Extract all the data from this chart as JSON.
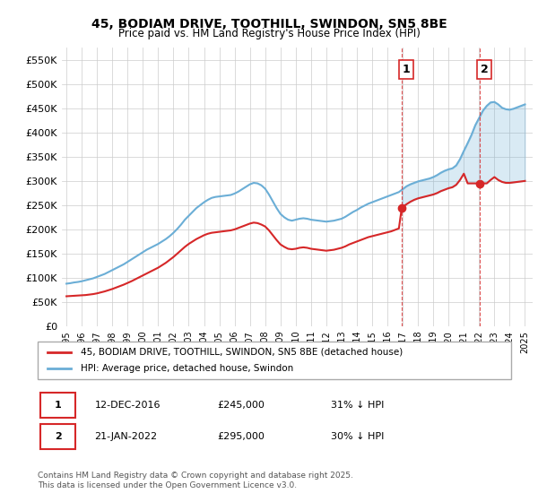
{
  "title": "45, BODIAM DRIVE, TOOTHILL, SWINDON, SN5 8BE",
  "subtitle": "Price paid vs. HM Land Registry's House Price Index (HPI)",
  "ylabel_ticks": [
    "£0",
    "£50K",
    "£100K",
    "£150K",
    "£200K",
    "£250K",
    "£300K",
    "£350K",
    "£400K",
    "£450K",
    "£500K",
    "£550K"
  ],
  "ytick_values": [
    0,
    50000,
    100000,
    150000,
    200000,
    250000,
    300000,
    350000,
    400000,
    450000,
    500000,
    550000
  ],
  "ylim": [
    0,
    575000
  ],
  "xlim_start": 1995.0,
  "xlim_end": 2025.5,
  "sale1_date": 2016.94,
  "sale1_price": 245000,
  "sale1_label": "1",
  "sale2_date": 2022.05,
  "sale2_price": 295000,
  "sale2_label": "2",
  "hpi_color": "#6baed6",
  "property_color": "#d62728",
  "vline_color": "#d62728",
  "grid_color": "#cccccc",
  "legend_property": "45, BODIAM DRIVE, TOOTHILL, SWINDON, SN5 8BE (detached house)",
  "legend_hpi": "HPI: Average price, detached house, Swindon",
  "table_row1": [
    "1",
    "12-DEC-2016",
    "£245,000",
    "31% ↓ HPI"
  ],
  "table_row2": [
    "2",
    "21-JAN-2022",
    "£295,000",
    "30% ↓ HPI"
  ],
  "footer": "Contains HM Land Registry data © Crown copyright and database right 2025.\nThis data is licensed under the Open Government Licence v3.0.",
  "hpi_x": [
    1995.0,
    1995.25,
    1995.5,
    1995.75,
    1996.0,
    1996.25,
    1996.5,
    1996.75,
    1997.0,
    1997.25,
    1997.5,
    1997.75,
    1998.0,
    1998.25,
    1998.5,
    1998.75,
    1999.0,
    1999.25,
    1999.5,
    1999.75,
    2000.0,
    2000.25,
    2000.5,
    2000.75,
    2001.0,
    2001.25,
    2001.5,
    2001.75,
    2002.0,
    2002.25,
    2002.5,
    2002.75,
    2003.0,
    2003.25,
    2003.5,
    2003.75,
    2004.0,
    2004.25,
    2004.5,
    2004.75,
    2005.0,
    2005.25,
    2005.5,
    2005.75,
    2006.0,
    2006.25,
    2006.5,
    2006.75,
    2007.0,
    2007.25,
    2007.5,
    2007.75,
    2008.0,
    2008.25,
    2008.5,
    2008.75,
    2009.0,
    2009.25,
    2009.5,
    2009.75,
    2010.0,
    2010.25,
    2010.5,
    2010.75,
    2011.0,
    2011.25,
    2011.5,
    2011.75,
    2012.0,
    2012.25,
    2012.5,
    2012.75,
    2013.0,
    2013.25,
    2013.5,
    2013.75,
    2014.0,
    2014.25,
    2014.5,
    2014.75,
    2015.0,
    2015.25,
    2015.5,
    2015.75,
    2016.0,
    2016.25,
    2016.5,
    2016.75,
    2017.0,
    2017.25,
    2017.5,
    2017.75,
    2018.0,
    2018.25,
    2018.5,
    2018.75,
    2019.0,
    2019.25,
    2019.5,
    2019.75,
    2020.0,
    2020.25,
    2020.5,
    2020.75,
    2021.0,
    2021.25,
    2021.5,
    2021.75,
    2022.0,
    2022.25,
    2022.5,
    2022.75,
    2023.0,
    2023.25,
    2023.5,
    2023.75,
    2024.0,
    2024.25,
    2024.5,
    2024.75,
    2025.0
  ],
  "hpi_y": [
    88000,
    89000,
    90500,
    91500,
    93000,
    95000,
    97000,
    99000,
    102000,
    105000,
    108000,
    112000,
    116000,
    120000,
    124000,
    128000,
    133000,
    138000,
    143000,
    148000,
    153000,
    158000,
    162000,
    166000,
    170000,
    175000,
    180000,
    186000,
    193000,
    201000,
    210000,
    220000,
    228000,
    236000,
    244000,
    250000,
    256000,
    261000,
    265000,
    267000,
    268000,
    269000,
    270000,
    271000,
    274000,
    278000,
    283000,
    288000,
    293000,
    296000,
    295000,
    291000,
    284000,
    272000,
    258000,
    244000,
    232000,
    225000,
    220000,
    218000,
    220000,
    222000,
    223000,
    222000,
    220000,
    219000,
    218000,
    217000,
    216000,
    217000,
    218000,
    220000,
    222000,
    226000,
    231000,
    236000,
    240000,
    245000,
    249000,
    253000,
    256000,
    259000,
    262000,
    265000,
    268000,
    271000,
    274000,
    277000,
    283000,
    289000,
    293000,
    296000,
    299000,
    301000,
    303000,
    305000,
    308000,
    312000,
    317000,
    321000,
    324000,
    326000,
    332000,
    345000,
    362000,
    378000,
    395000,
    415000,
    430000,
    445000,
    455000,
    462000,
    463000,
    458000,
    451000,
    448000,
    447000,
    449000,
    452000,
    455000,
    458000
  ],
  "prop_x": [
    1995.0,
    1995.25,
    1995.5,
    1995.75,
    1996.0,
    1996.25,
    1996.5,
    1996.75,
    1997.0,
    1997.25,
    1997.5,
    1997.75,
    1998.0,
    1998.25,
    1998.5,
    1998.75,
    1999.0,
    1999.25,
    1999.5,
    1999.75,
    2000.0,
    2000.25,
    2000.5,
    2000.75,
    2001.0,
    2001.25,
    2001.5,
    2001.75,
    2002.0,
    2002.25,
    2002.5,
    2002.75,
    2003.0,
    2003.25,
    2003.5,
    2003.75,
    2004.0,
    2004.25,
    2004.5,
    2004.75,
    2005.0,
    2005.25,
    2005.5,
    2005.75,
    2006.0,
    2006.25,
    2006.5,
    2006.75,
    2007.0,
    2007.25,
    2007.5,
    2007.75,
    2008.0,
    2008.25,
    2008.5,
    2008.75,
    2009.0,
    2009.25,
    2009.5,
    2009.75,
    2010.0,
    2010.25,
    2010.5,
    2010.75,
    2011.0,
    2011.25,
    2011.5,
    2011.75,
    2012.0,
    2012.25,
    2012.5,
    2012.75,
    2013.0,
    2013.25,
    2013.5,
    2013.75,
    2014.0,
    2014.25,
    2014.5,
    2014.75,
    2015.0,
    2015.25,
    2015.5,
    2015.75,
    2016.0,
    2016.25,
    2016.5,
    2016.75,
    2016.94,
    2017.25,
    2017.5,
    2017.75,
    2018.0,
    2018.25,
    2018.5,
    2018.75,
    2019.0,
    2019.25,
    2019.5,
    2019.75,
    2020.0,
    2020.25,
    2020.5,
    2020.75,
    2021.0,
    2021.25,
    2021.5,
    2021.75,
    2022.05,
    2022.25,
    2022.5,
    2022.75,
    2023.0,
    2023.25,
    2023.5,
    2023.75,
    2024.0,
    2024.25,
    2024.5,
    2024.75,
    2025.0
  ],
  "prop_y": [
    62000,
    62500,
    63000,
    63500,
    64000,
    64500,
    65500,
    66500,
    68000,
    70000,
    72000,
    74500,
    77000,
    80000,
    83000,
    86000,
    89500,
    93000,
    97000,
    101000,
    105000,
    109000,
    113000,
    117000,
    121000,
    126000,
    131000,
    137000,
    143000,
    150000,
    157000,
    164000,
    170000,
    175000,
    180000,
    184000,
    188000,
    191000,
    193000,
    194000,
    195000,
    196000,
    197000,
    198000,
    200000,
    203000,
    206000,
    209000,
    212000,
    214000,
    213000,
    210000,
    206000,
    198000,
    188000,
    178000,
    169000,
    164000,
    160000,
    159000,
    160000,
    162000,
    163000,
    162000,
    160000,
    159000,
    158000,
    157000,
    156000,
    157000,
    158000,
    160000,
    162000,
    165000,
    169000,
    172000,
    175000,
    178000,
    181000,
    184000,
    186000,
    188000,
    190000,
    192000,
    194000,
    196000,
    199000,
    202000,
    245000,
    252000,
    257000,
    261000,
    264000,
    266000,
    268000,
    270000,
    272000,
    275000,
    279000,
    282000,
    285000,
    287000,
    292000,
    302000,
    315000,
    295000,
    295000,
    295000,
    295000,
    295000,
    295000,
    302000,
    308000,
    302000,
    298000,
    296000,
    296000,
    297000,
    298000,
    299000,
    300000
  ]
}
